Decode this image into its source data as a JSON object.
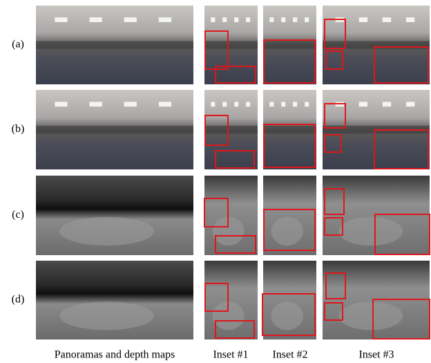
{
  "row_labels": [
    "(a)",
    "(b)",
    "(c)",
    "(d)"
  ],
  "column_captions": [
    "Panoramas and depth maps",
    "Inset #1",
    "Inset #2",
    "Inset #3"
  ]
}
